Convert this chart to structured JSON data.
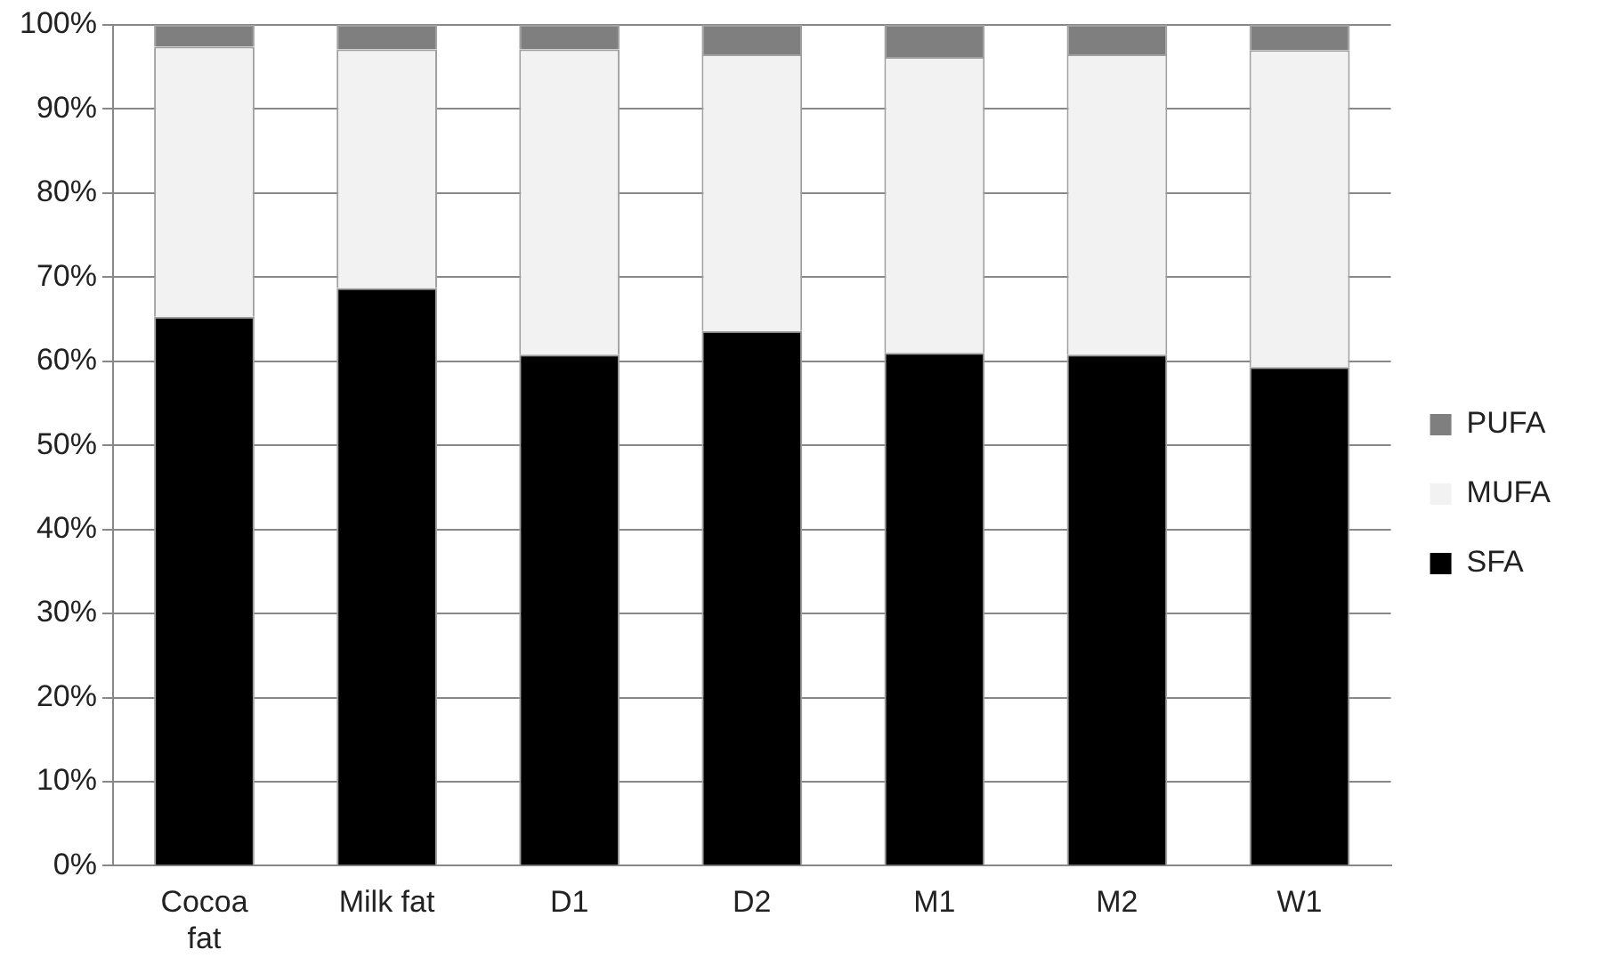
{
  "chart_data": {
    "type": "bar",
    "stacked": true,
    "categories": [
      "Cocoa fat",
      "Milk fat",
      "D1",
      "D2",
      "M1",
      "M2",
      "W1"
    ],
    "series": [
      {
        "name": "SFA",
        "color": "#000000",
        "values": [
          65.3,
          68.7,
          60.8,
          63.6,
          61.0,
          60.8,
          59.3
        ]
      },
      {
        "name": "MUFA",
        "color": "#f2f2f2",
        "values": [
          32.1,
          28.4,
          36.3,
          32.9,
          35.2,
          35.7,
          37.7
        ]
      },
      {
        "name": "PUFA",
        "color": "#7f7f7f",
        "values": [
          2.6,
          2.9,
          2.9,
          3.5,
          3.8,
          3.5,
          3.0
        ]
      }
    ],
    "ylim": [
      0,
      100
    ],
    "yticks": [
      {
        "value": 0,
        "label": "0%"
      },
      {
        "value": 10,
        "label": "10%"
      },
      {
        "value": 20,
        "label": "20%"
      },
      {
        "value": 30,
        "label": "30%"
      },
      {
        "value": 40,
        "label": "40%"
      },
      {
        "value": 50,
        "label": "50%"
      },
      {
        "value": 60,
        "label": "60%"
      },
      {
        "value": 70,
        "label": "70%"
      },
      {
        "value": 80,
        "label": "80%"
      },
      {
        "value": 90,
        "label": "90%"
      },
      {
        "value": 100,
        "label": "100%"
      }
    ],
    "grid": "y",
    "legend": "right"
  }
}
